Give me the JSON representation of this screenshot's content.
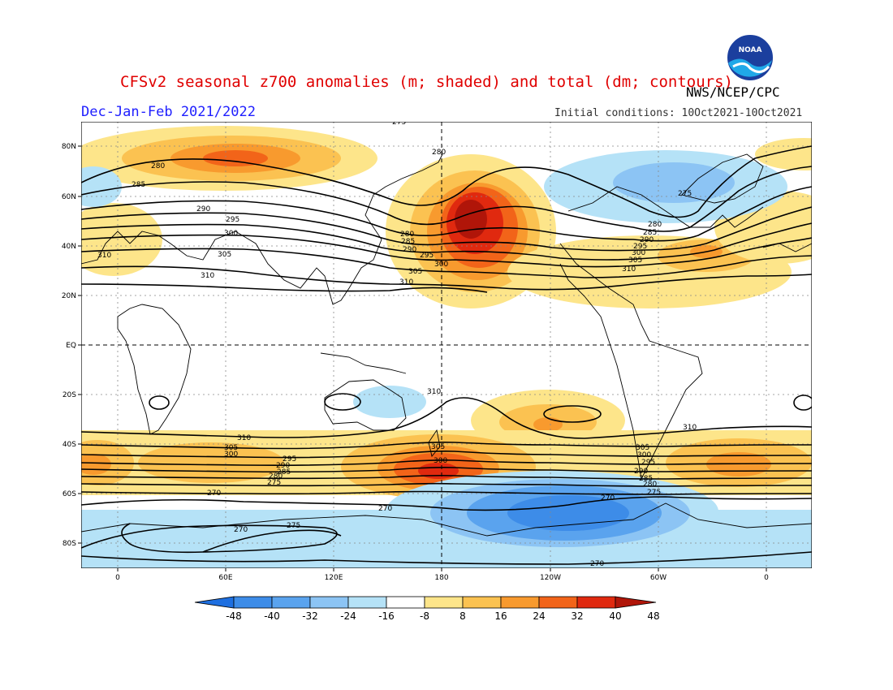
{
  "header": {
    "title": "CFSv2 seasonal z700 anomalies (m; shaded) and total (dm; contours)",
    "organization": "NWS/NCEP/CPC",
    "season": "Dec-Jan-Feb 2021/2022",
    "initial_conditions": "Initial conditions: 10Oct2021-10Oct2021",
    "logo_text": "NOAA"
  },
  "map": {
    "lat_labels": [
      "80N",
      "60N",
      "40N",
      "20N",
      "EQ",
      "20S",
      "40S",
      "60S",
      "80S"
    ],
    "lon_labels": [
      "0",
      "60E",
      "120E",
      "180",
      "120W",
      "60W",
      "0"
    ],
    "contour_labels_nh": [
      "275",
      "280",
      "280",
      "285",
      "290",
      "295",
      "300",
      "305",
      "310",
      "310",
      "280",
      "285",
      "290",
      "295",
      "300",
      "305",
      "310",
      "275",
      "280",
      "285",
      "290",
      "295",
      "300",
      "305",
      "310"
    ],
    "contour_labels_sh": [
      "310",
      "310",
      "310",
      "305",
      "300",
      "295",
      "290",
      "285",
      "280",
      "275",
      "270",
      "305",
      "300",
      "305",
      "300",
      "295",
      "290",
      "285",
      "280",
      "275",
      "270",
      "270",
      "270",
      "275",
      "270"
    ]
  },
  "colorbar": {
    "ticks": [
      "-48",
      "-40",
      "-32",
      "-24",
      "-16",
      "-8",
      "8",
      "16",
      "24",
      "32",
      "40",
      "48"
    ],
    "colors": [
      "#1e6fe0",
      "#3d8ce8",
      "#5aa3ee",
      "#8cc4f4",
      "#b5e2f7",
      "#ffffff",
      "#fde58a",
      "#fbc251",
      "#f89a2e",
      "#f26419",
      "#e0290f",
      "#b01509"
    ]
  }
}
